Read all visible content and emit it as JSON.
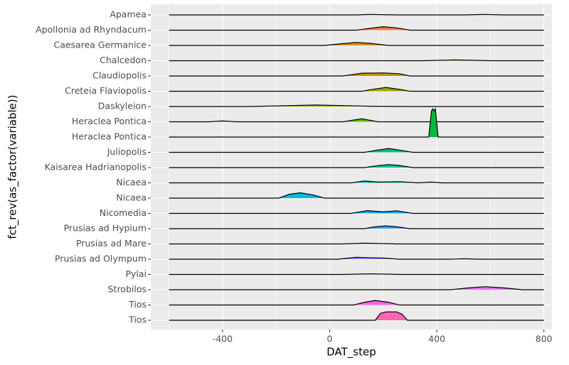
{
  "chart_data": {
    "type": "ridgeline",
    "xlabel": "DAT_step",
    "ylabel": "fct_rev(as_factor(variable))",
    "categories": [
      "Apamea",
      "Apollonia ad Rhyndacum",
      "Caesarea Germanice",
      "Chalcedon",
      "Claudiopolis",
      "Creteia Flaviopolis",
      "Daskyleion",
      "Heraclea Pontica",
      "Heraclea Pontica ",
      "Juliopolis",
      "Kaisarea Hadrianopolis",
      "Nicaea",
      "Nicaea ",
      "Nicomedia",
      "Prusias ad Hypium",
      "Prusias ad Mare",
      "Prusias ad Olympum",
      "Pylai",
      "Strobilos",
      "Tios",
      "Tios "
    ],
    "xlim": [
      -668,
      830
    ],
    "xticks": [
      -400,
      0,
      400,
      800
    ],
    "grid": true,
    "series": [
      {
        "color": "#F8766D",
        "x": [
          -600,
          100,
          150,
          250,
          500,
          580,
          650,
          800
        ],
        "values": [
          0,
          0,
          0.03,
          0,
          0,
          0.03,
          0,
          0
        ]
      },
      {
        "color": "#EE8044",
        "x": [
          -600,
          100,
          150,
          200,
          250,
          300,
          800
        ],
        "values": [
          0,
          0,
          0.12,
          0.23,
          0.15,
          0,
          0
        ]
      },
      {
        "color": "#E08B00",
        "x": [
          -600,
          -20,
          50,
          100,
          150,
          220,
          800
        ],
        "values": [
          0,
          0,
          0.12,
          0.2,
          0.14,
          0,
          0
        ]
      },
      {
        "color": "#CF9400",
        "x": [
          -600,
          350,
          470,
          600,
          800
        ],
        "values": [
          0,
          0,
          0.05,
          0,
          0
        ]
      },
      {
        "color": "#BB9D00",
        "x": [
          -600,
          50,
          120,
          200,
          260,
          300,
          800
        ],
        "values": [
          0,
          0,
          0.18,
          0.2,
          0.15,
          0,
          0
        ]
      },
      {
        "color": "#A3A500",
        "x": [
          -600,
          120,
          170,
          210,
          260,
          300,
          800
        ],
        "values": [
          0,
          0,
          0.15,
          0.25,
          0.12,
          0,
          0
        ]
      },
      {
        "color": "#85AD00",
        "x": [
          -600,
          -300,
          -50,
          150,
          300,
          800
        ],
        "values": [
          0,
          0,
          0.1,
          0.02,
          0,
          0
        ]
      },
      {
        "color": "#5BB300",
        "x": [
          -600,
          -450,
          -400,
          -350,
          50,
          120,
          180,
          800
        ],
        "values": [
          0,
          0,
          0.06,
          0,
          0,
          0.2,
          0,
          0
        ]
      },
      {
        "color": "#00BA38",
        "x": [
          -600,
          370,
          380,
          385,
          390,
          395,
          405,
          800
        ],
        "values": [
          0,
          0,
          1.7,
          1.85,
          1.7,
          1.85,
          0,
          0
        ]
      },
      {
        "color": "#00BF7D",
        "x": [
          -600,
          130,
          180,
          220,
          260,
          310,
          800
        ],
        "values": [
          0,
          0,
          0.15,
          0.25,
          0.15,
          0,
          0
        ]
      },
      {
        "color": "#00C19C",
        "x": [
          -600,
          130,
          180,
          220,
          260,
          310,
          800
        ],
        "values": [
          0,
          0,
          0.13,
          0.2,
          0.14,
          0,
          0
        ]
      },
      {
        "color": "#00C0B8",
        "x": [
          -600,
          80,
          130,
          180,
          260,
          330,
          380,
          420,
          800
        ],
        "values": [
          0,
          0,
          0.12,
          0.05,
          0.08,
          0,
          0.05,
          0,
          0
        ]
      },
      {
        "color": "#00BCD8",
        "x": [
          -600,
          -190,
          -150,
          -110,
          -60,
          -20,
          800
        ],
        "values": [
          0,
          0,
          0.25,
          0.35,
          0.2,
          0,
          0
        ]
      },
      {
        "color": "#00B0F6",
        "x": [
          -600,
          80,
          140,
          200,
          250,
          310,
          800
        ],
        "values": [
          0,
          0,
          0.18,
          0.1,
          0.17,
          0,
          0
        ]
      },
      {
        "color": "#35A2FF",
        "x": [
          -600,
          130,
          170,
          210,
          250,
          300,
          800
        ],
        "values": [
          0,
          0,
          0.12,
          0.18,
          0.12,
          0,
          0
        ]
      },
      {
        "color": "#7997FF",
        "x": [
          -600,
          50,
          130,
          250,
          800
        ],
        "values": [
          0,
          0,
          0.05,
          0,
          0
        ]
      },
      {
        "color": "#A58AFF",
        "x": [
          -600,
          30,
          100,
          200,
          260,
          450,
          500,
          560,
          800
        ],
        "values": [
          0,
          0,
          0.12,
          0.08,
          0,
          0,
          0.03,
          0,
          0
        ]
      },
      {
        "color": "#C77CFF",
        "x": [
          -600,
          50,
          150,
          270,
          800
        ],
        "values": [
          0,
          0,
          0.04,
          0,
          0
        ]
      },
      {
        "color": "#E36EF6",
        "x": [
          -600,
          450,
          520,
          580,
          650,
          720,
          800
        ],
        "values": [
          0,
          0,
          0.12,
          0.2,
          0.12,
          0,
          0
        ]
      },
      {
        "color": "#F564E3",
        "x": [
          -600,
          90,
          130,
          170,
          220,
          260,
          800
        ],
        "values": [
          0,
          0,
          0.18,
          0.3,
          0.18,
          0,
          0
        ]
      },
      {
        "color": "#FF64B0",
        "x": [
          -600,
          170,
          190,
          210,
          250,
          270,
          290,
          800
        ],
        "values": [
          0,
          0,
          0.45,
          0.55,
          0.55,
          0.4,
          0,
          0
        ]
      }
    ]
  }
}
